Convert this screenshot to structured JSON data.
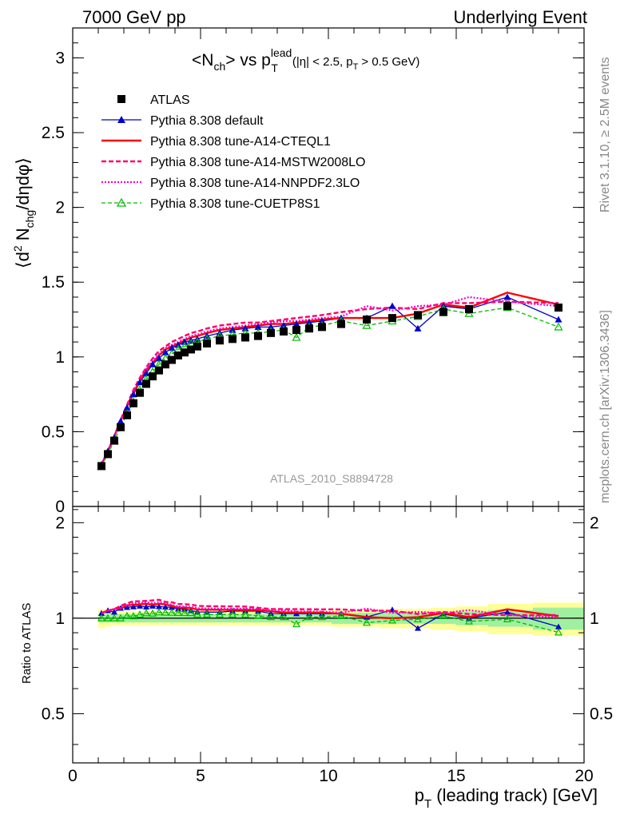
{
  "header": {
    "left": "7000 GeV pp",
    "right": "Underlying Event"
  },
  "side_text": {
    "rivet": "Rivet 3.1.10, ≥ 2.5M events",
    "mcplots": "mcplots.cern.ch [arXiv:1306.3436]"
  },
  "analysis_label": "ATLAS_2010_S8894728",
  "title": {
    "main": "<N",
    "sub_ch": "ch",
    "vs": "> vs p",
    "sup_lead": "lead",
    "sub_T": "T",
    "cut_1": "(|η| < 2.5, p",
    "cut_sub_T": "T",
    "cut_2": "> 0.5 GeV)"
  },
  "axes": {
    "ylabel_top": "⟨d",
    "ylabel_sup": "2",
    "ylabel_mid": " N",
    "ylabel_sub": "chg",
    "ylabel_end": "/dηdφ⟩",
    "ylabel_ratio": "Ratio to ATLAS",
    "xlabel_p": "p",
    "xlabel_sub": "T",
    "xlabel_rest": " (leading track) [GeV]"
  },
  "colors": {
    "atlas": "#000000",
    "default": "#0000cc",
    "cteql1": "#ff0000",
    "mstw": "#ff0066",
    "nnpdf": "#ff00cc",
    "cuetp8s1": "#00bb00",
    "band_inner": "#a0f0a0",
    "band_outer": "#ffff99"
  },
  "chart_data": {
    "type": "scatter",
    "xlim": [
      0,
      20
    ],
    "ylim": [
      0,
      3.2
    ],
    "ratio_ylim": [
      0.35,
      2.25
    ],
    "x_ticks": [
      "0",
      "5",
      "10",
      "15",
      "20"
    ],
    "y_ticks": [
      "0",
      "0.5",
      "1",
      "1.5",
      "2",
      "2.5",
      "3"
    ],
    "ratio_y_ticks": [
      "0.5",
      "1",
      "2"
    ],
    "x": [
      1.125,
      1.375,
      1.625,
      1.875,
      2.125,
      2.375,
      2.625,
      2.875,
      3.125,
      3.375,
      3.625,
      3.875,
      4.125,
      4.375,
      4.625,
      4.875,
      5.25,
      5.75,
      6.25,
      6.75,
      7.25,
      7.75,
      8.25,
      8.75,
      9.25,
      9.75,
      10.5,
      11.5,
      12.5,
      13.5,
      14.5,
      15.5,
      17.0,
      19.0
    ],
    "series": [
      {
        "name": "ATLAS",
        "key": "atlas",
        "values": [
          0.27,
          0.35,
          0.44,
          0.53,
          0.61,
          0.69,
          0.76,
          0.82,
          0.87,
          0.91,
          0.95,
          0.98,
          1.01,
          1.03,
          1.05,
          1.07,
          1.09,
          1.11,
          1.12,
          1.13,
          1.14,
          1.16,
          1.17,
          1.18,
          1.19,
          1.2,
          1.22,
          1.25,
          1.26,
          1.28,
          1.3,
          1.32,
          1.34,
          1.33
        ]
      },
      {
        "name": "Pythia 8.308 default",
        "key": "default",
        "values": [
          0.28,
          0.37,
          0.46,
          0.57,
          0.66,
          0.75,
          0.83,
          0.89,
          0.95,
          0.99,
          1.03,
          1.06,
          1.08,
          1.1,
          1.11,
          1.12,
          1.14,
          1.16,
          1.18,
          1.19,
          1.2,
          1.2,
          1.21,
          1.22,
          1.23,
          1.24,
          1.26,
          1.26,
          1.34,
          1.19,
          1.34,
          1.32,
          1.4,
          1.25
        ]
      },
      {
        "name": "Pythia 8.308 tune-A14-CTEQL1",
        "key": "cteql1",
        "values": [
          0.28,
          0.37,
          0.47,
          0.57,
          0.67,
          0.76,
          0.84,
          0.91,
          0.96,
          1.01,
          1.05,
          1.07,
          1.09,
          1.11,
          1.13,
          1.14,
          1.16,
          1.18,
          1.19,
          1.2,
          1.21,
          1.22,
          1.22,
          1.23,
          1.24,
          1.25,
          1.26,
          1.26,
          1.26,
          1.29,
          1.35,
          1.33,
          1.43,
          1.35
        ]
      },
      {
        "name": "Pythia 8.308 tune-A14-MSTW2008LO",
        "key": "mstw",
        "values": [
          0.28,
          0.37,
          0.47,
          0.58,
          0.68,
          0.78,
          0.86,
          0.93,
          0.99,
          1.04,
          1.07,
          1.1,
          1.12,
          1.14,
          1.16,
          1.17,
          1.19,
          1.21,
          1.22,
          1.23,
          1.23,
          1.24,
          1.25,
          1.26,
          1.27,
          1.28,
          1.3,
          1.32,
          1.33,
          1.32,
          1.36,
          1.36,
          1.37,
          1.36
        ]
      },
      {
        "name": "Pythia 8.308 tune-A14-NNPDF2.3LO",
        "key": "nnpdf",
        "values": [
          0.28,
          0.37,
          0.47,
          0.57,
          0.67,
          0.77,
          0.85,
          0.92,
          0.97,
          1.02,
          1.06,
          1.08,
          1.1,
          1.12,
          1.14,
          1.15,
          1.17,
          1.19,
          1.2,
          1.21,
          1.22,
          1.23,
          1.24,
          1.24,
          1.25,
          1.26,
          1.27,
          1.34,
          1.31,
          1.34,
          1.35,
          1.4,
          1.37,
          1.34
        ]
      },
      {
        "name": "Pythia 8.308 tune-CUETP8S1",
        "key": "cuetp8s1",
        "values": [
          0.27,
          0.35,
          0.44,
          0.53,
          0.62,
          0.7,
          0.78,
          0.85,
          0.9,
          0.95,
          0.99,
          1.02,
          1.05,
          1.07,
          1.09,
          1.1,
          1.12,
          1.14,
          1.15,
          1.16,
          1.16,
          1.17,
          1.18,
          1.13,
          1.2,
          1.21,
          1.24,
          1.21,
          1.24,
          1.27,
          1.32,
          1.29,
          1.33,
          1.2
        ]
      }
    ],
    "band_inner_halfwidth": [
      0.03,
      0.03,
      0.03,
      0.03,
      0.03,
      0.03,
      0.03,
      0.03,
      0.03,
      0.03,
      0.03,
      0.03,
      0.03,
      0.03,
      0.03,
      0.03,
      0.03,
      0.03,
      0.03,
      0.03,
      0.03,
      0.03,
      0.03,
      0.03,
      0.03,
      0.03,
      0.04,
      0.04,
      0.04,
      0.04,
      0.04,
      0.05,
      0.06,
      0.08
    ],
    "band_outer_halfwidth": [
      0.07,
      0.06,
      0.05,
      0.05,
      0.05,
      0.05,
      0.05,
      0.05,
      0.05,
      0.05,
      0.05,
      0.05,
      0.05,
      0.05,
      0.05,
      0.05,
      0.05,
      0.05,
      0.05,
      0.05,
      0.05,
      0.05,
      0.05,
      0.05,
      0.05,
      0.05,
      0.06,
      0.06,
      0.07,
      0.07,
      0.08,
      0.09,
      0.11,
      0.12
    ]
  }
}
